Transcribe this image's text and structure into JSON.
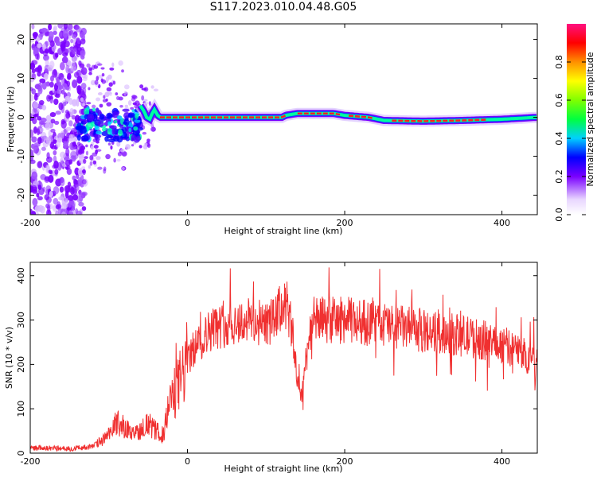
{
  "title": "S117.2023.010.04.48.G05",
  "chart_data": [
    {
      "type": "heatmap",
      "xlabel": "Height of straight line (km)",
      "ylabel": "Frequency (Hz)",
      "xlim": [
        -200,
        445
      ],
      "ylim": [
        -25,
        24
      ],
      "xticks": [
        -200,
        0,
        200,
        400
      ],
      "yticks": [
        -20,
        -10,
        0,
        10,
        20
      ],
      "colorbar": {
        "label": "Normalized spectral amplitude",
        "range": [
          0,
          1
        ],
        "ticks": [
          "0.0",
          "0.2",
          "0.4",
          "0.6",
          "0.8"
        ]
      },
      "ridge": {
        "x": [
          -60,
          -55,
          -52,
          -48,
          -45,
          -42,
          -38,
          -35,
          0,
          50,
          100,
          120,
          125,
          140,
          160,
          185,
          200,
          230,
          250,
          300,
          350,
          400,
          445
        ],
        "y": [
          3,
          1.5,
          0,
          -0.5,
          1,
          2,
          0.5,
          0,
          0,
          0,
          0,
          0,
          0.5,
          1,
          1,
          1,
          0.5,
          0,
          -0.8,
          -1,
          -0.8,
          -0.5,
          0
        ]
      }
    },
    {
      "type": "line",
      "xlabel": "Height of straight line (km)",
      "ylabel": "SNR (10 * v/v)",
      "xlim": [
        -200,
        445
      ],
      "ylim": [
        0,
        430
      ],
      "xticks": [
        -200,
        0,
        200,
        400
      ],
      "yticks": [
        0,
        100,
        200,
        300,
        400
      ],
      "color": "#f03030",
      "envelope": {
        "x": [
          -200,
          -150,
          -120,
          -100,
          -90,
          -80,
          -70,
          -60,
          -50,
          -40,
          -30,
          -25,
          -20,
          -10,
          0,
          10,
          20,
          30,
          50,
          80,
          100,
          110,
          120,
          125,
          130,
          135,
          140,
          145,
          150,
          155,
          160,
          180,
          200,
          250,
          300,
          350,
          400,
          420,
          445
        ],
        "y": [
          12,
          10,
          15,
          40,
          70,
          60,
          40,
          55,
          65,
          50,
          40,
          100,
          120,
          160,
          210,
          240,
          260,
          280,
          290,
          300,
          290,
          300,
          330,
          350,
          300,
          250,
          160,
          130,
          200,
          270,
          300,
          300,
          300,
          290,
          275,
          265,
          245,
          230,
          205
        ]
      }
    }
  ]
}
